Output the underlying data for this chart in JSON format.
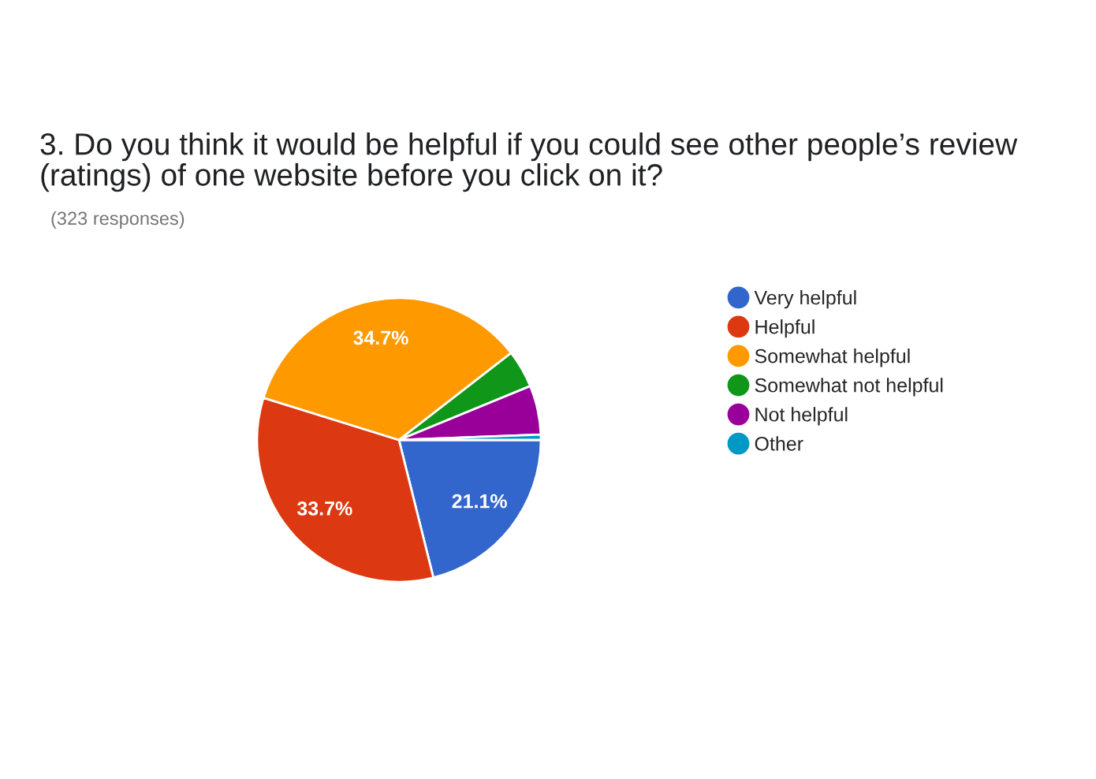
{
  "chart_data": {
    "type": "pie",
    "title": "3. Do you think it would be helpful if you could see other people’s review (ratings) of one website before you click on it?",
    "subtitle": "(323 responses)",
    "categories": [
      "Very helpful",
      "Helpful",
      "Somewhat helpful",
      "Somewhat not helpful",
      "Not helpful",
      "Other"
    ],
    "values": [
      21.1,
      33.7,
      34.7,
      4.3,
      5.6,
      0.6
    ],
    "colors": [
      "#3366cc",
      "#dc3912",
      "#ff9900",
      "#109618",
      "#990099",
      "#0099c6"
    ],
    "value_labels": [
      "21.1%",
      "33.7%",
      "34.7%",
      null,
      null,
      null
    ],
    "legend": "right"
  }
}
